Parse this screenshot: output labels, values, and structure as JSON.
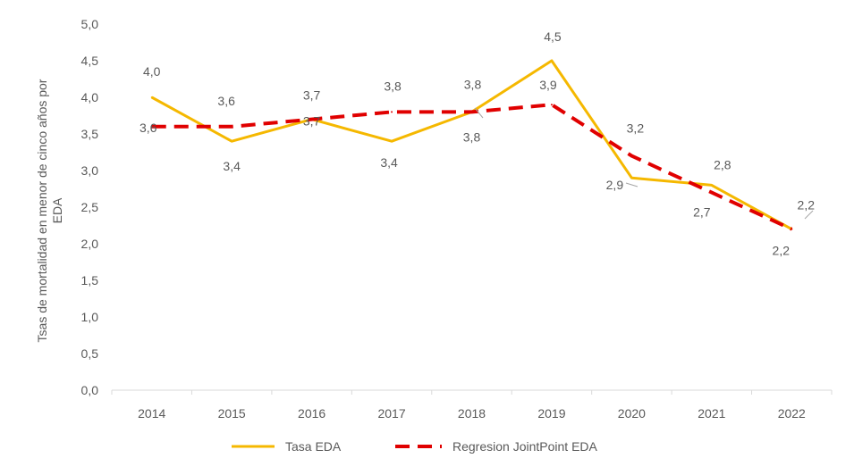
{
  "chart_data": {
    "type": "line",
    "title": "",
    "xlabel": "",
    "ylabel": "Tsas de mortalidad en menor de cinco años por EDA",
    "ylabel_lines": [
      "Tsas de mortalidad en menor de cinco años por",
      "EDA"
    ],
    "ylim": [
      0,
      5
    ],
    "yticks": [
      "0,0",
      "0,5",
      "1,0",
      "1,5",
      "2,0",
      "2,5",
      "3,0",
      "3,5",
      "4,0",
      "4,5",
      "5,0"
    ],
    "categories": [
      "2014",
      "2015",
      "2016",
      "2017",
      "2018",
      "2019",
      "2020",
      "2021",
      "2022"
    ],
    "grid": false,
    "legend": "bottom",
    "series": [
      {
        "name": "Tasa EDA",
        "style": "solid",
        "color": "#F5B800",
        "values": [
          4.0,
          3.4,
          3.7,
          3.4,
          3.8,
          4.5,
          2.9,
          2.8,
          2.2
        ],
        "labels": [
          "4,0",
          "3,4",
          "3,7",
          "3,4",
          "3,8",
          "4,5",
          "2,9",
          "2,8",
          "2,2"
        ]
      },
      {
        "name": "Regresion JointPoint EDA",
        "style": "dashed",
        "color": "#E00000",
        "values": [
          3.6,
          3.6,
          3.7,
          3.8,
          3.8,
          3.9,
          3.2,
          2.7,
          2.2
        ],
        "labels": [
          "3,6",
          "3,6",
          "3,7",
          "3,8",
          "3,8",
          "3,9",
          "3,2",
          "2,7",
          "2,2"
        ]
      }
    ]
  }
}
